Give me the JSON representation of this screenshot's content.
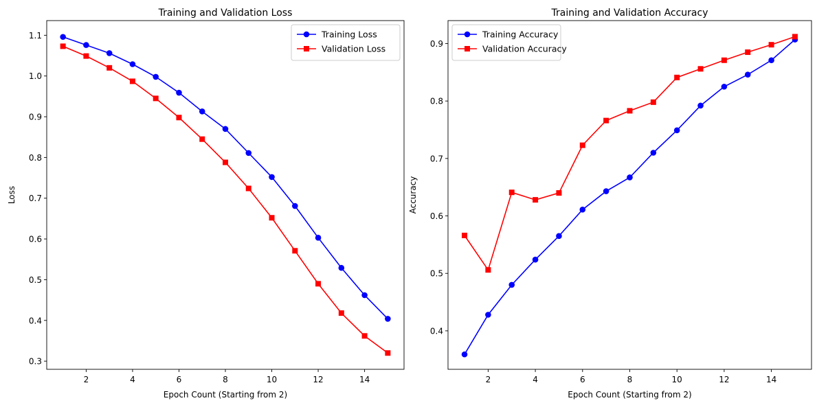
{
  "chart_data": [
    {
      "type": "line",
      "title": "Training and Validation Loss",
      "xlabel": "Epoch Count (Starting from 2)",
      "ylabel": "Loss",
      "xlim": [
        0.3,
        15.7
      ],
      "ylim": [
        0.28,
        1.136
      ],
      "xticks": [
        2,
        4,
        6,
        8,
        10,
        12,
        14
      ],
      "yticks": [
        0.3,
        0.4,
        0.5,
        0.6,
        0.7,
        0.8,
        0.9,
        1.0,
        1.1
      ],
      "ytick_labels": [
        "0.3",
        "0.4",
        "0.5",
        "0.6",
        "0.7",
        "0.8",
        "0.9",
        "1.0",
        "1.1"
      ],
      "grid": false,
      "legend_position": "top-right",
      "x": [
        1,
        2,
        3,
        4,
        5,
        6,
        7,
        8,
        9,
        10,
        11,
        12,
        13,
        14,
        15
      ],
      "series": [
        {
          "name": "Training Loss",
          "color": "#0000ff",
          "marker": "circle",
          "values": [
            1.096,
            1.076,
            1.056,
            1.029,
            0.998,
            0.959,
            0.913,
            0.87,
            0.811,
            0.752,
            0.681,
            0.603,
            0.529,
            0.462,
            0.404
          ]
        },
        {
          "name": "Validation Loss",
          "color": "#ff0000",
          "marker": "square",
          "values": [
            1.073,
            1.049,
            1.02,
            0.987,
            0.945,
            0.898,
            0.845,
            0.788,
            0.724,
            0.652,
            0.571,
            0.49,
            0.418,
            0.362,
            0.32
          ]
        }
      ]
    },
    {
      "type": "line",
      "title": "Training and Validation Accuracy",
      "xlabel": "Epoch Count (Starting from 2)",
      "ylabel": "Accuracy",
      "xlim": [
        0.3,
        15.7
      ],
      "ylim": [
        0.333,
        0.94
      ],
      "xticks": [
        2,
        4,
        6,
        8,
        10,
        12,
        14
      ],
      "yticks": [
        0.4,
        0.5,
        0.6,
        0.7,
        0.8,
        0.9
      ],
      "ytick_labels": [
        "0.4",
        "0.5",
        "0.6",
        "0.7",
        "0.8",
        "0.9"
      ],
      "grid": false,
      "legend_position": "top-left",
      "x": [
        1,
        2,
        3,
        4,
        5,
        6,
        7,
        8,
        9,
        10,
        11,
        12,
        13,
        14,
        15
      ],
      "series": [
        {
          "name": "Training Accuracy",
          "color": "#0000ff",
          "marker": "circle",
          "values": [
            0.359,
            0.428,
            0.48,
            0.524,
            0.565,
            0.611,
            0.643,
            0.667,
            0.71,
            0.749,
            0.792,
            0.825,
            0.846,
            0.871,
            0.907
          ]
        },
        {
          "name": "Validation Accuracy",
          "color": "#ff0000",
          "marker": "square",
          "values": [
            0.566,
            0.506,
            0.641,
            0.628,
            0.64,
            0.723,
            0.766,
            0.783,
            0.798,
            0.841,
            0.856,
            0.871,
            0.885,
            0.898,
            0.912
          ]
        }
      ]
    }
  ]
}
